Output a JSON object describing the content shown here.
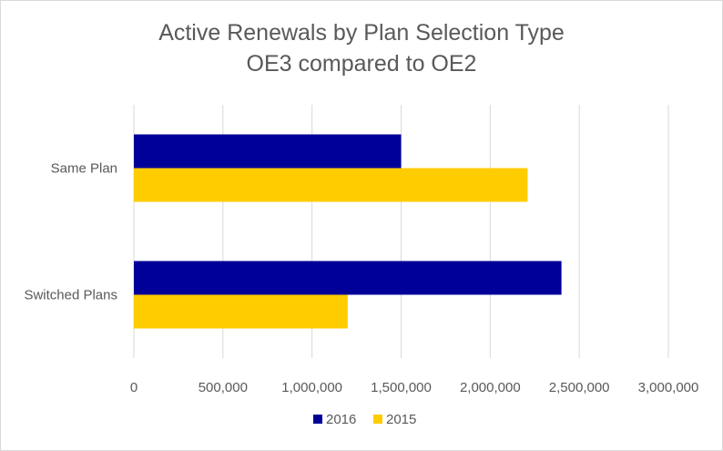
{
  "chart_data": {
    "type": "bar",
    "orientation": "horizontal",
    "title": "Active Renewals by Plan Selection Type",
    "subtitle": "OE3 compared to OE2",
    "categories": [
      "Same Plan",
      "Switched Plans"
    ],
    "series": [
      {
        "name": "2016",
        "color": "#000099",
        "values": [
          1500000,
          2400000
        ]
      },
      {
        "name": "2015",
        "color": "#FFCC00",
        "values": [
          2210000,
          1200000
        ]
      }
    ],
    "xlim": [
      0,
      3000000
    ],
    "xticks": [
      "0",
      "500,000",
      "1,000,000",
      "1,500,000",
      "2,000,000",
      "2,500,000",
      "3,000,000"
    ],
    "grid": "vertical",
    "legend": "bottom"
  }
}
